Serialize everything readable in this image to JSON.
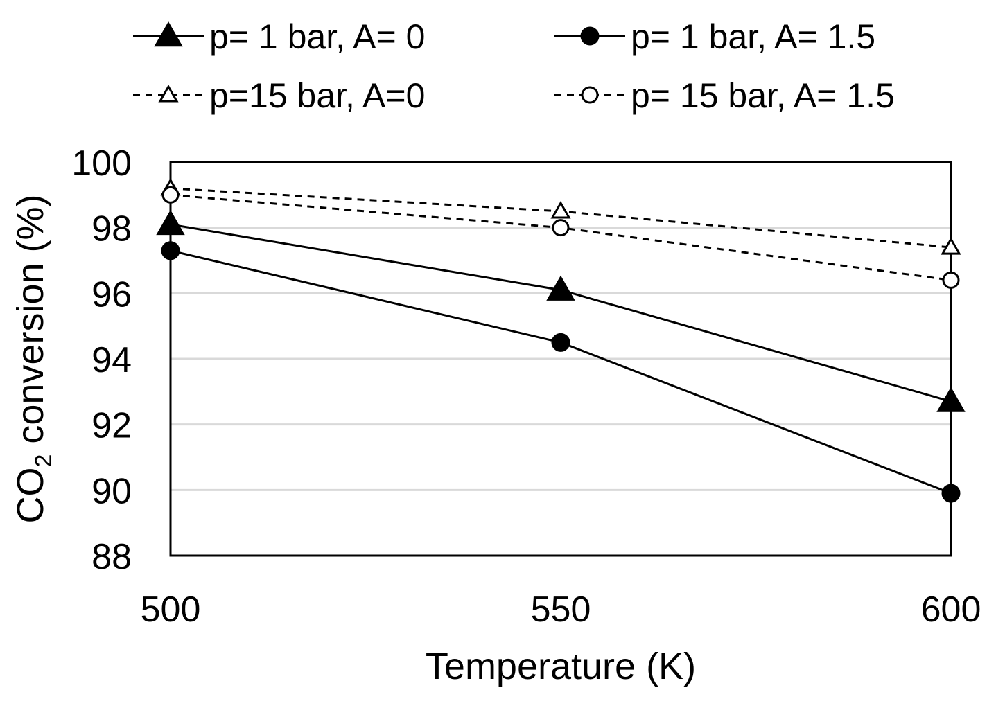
{
  "chart_data": {
    "type": "line",
    "xlabel": "Temperature (K)",
    "ylabel": {
      "prefix": "CO",
      "subscript": "2",
      "suffix": " conversion (%)"
    },
    "x": [
      500,
      550,
      600
    ],
    "xticks": [
      "500",
      "550",
      "600"
    ],
    "xlim": [
      500,
      600
    ],
    "ylim": [
      88,
      100
    ],
    "yticks": [
      "88",
      "90",
      "92",
      "94",
      "96",
      "98",
      "100"
    ],
    "grid": true,
    "legend_position": "top",
    "series": [
      {
        "name": "p= 1 bar, A= 0",
        "values": [
          98.1,
          96.1,
          92.7
        ],
        "marker": "triangle-filled",
        "line": "solid"
      },
      {
        "name": "p= 1 bar, A= 1.5",
        "values": [
          97.3,
          94.5,
          89.9
        ],
        "marker": "circle-filled",
        "line": "solid"
      },
      {
        "name": "p=15 bar, A=0",
        "values": [
          99.2,
          98.5,
          97.4
        ],
        "marker": "triangle-open",
        "line": "dashed"
      },
      {
        "name": "p= 15 bar, A= 1.5",
        "values": [
          99.0,
          98.0,
          96.4
        ],
        "marker": "circle-open",
        "line": "dashed"
      }
    ],
    "colors": {
      "line": "#000000",
      "grid": "#d9d9d9",
      "background": "#ffffff"
    }
  }
}
